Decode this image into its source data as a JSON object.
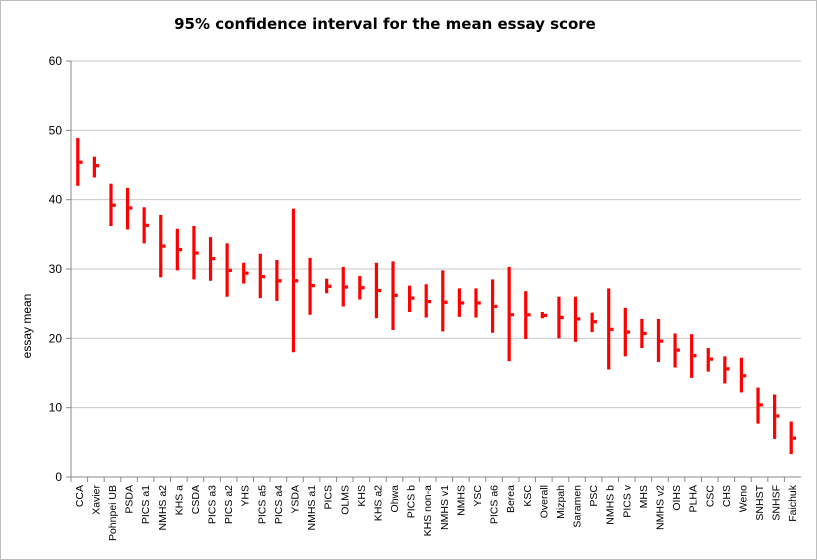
{
  "chart_data": {
    "type": "error-bar",
    "title": "95% confidence interval for the mean essay score",
    "xlabel": "",
    "ylabel": "essay mean",
    "ylim": [
      0,
      60
    ],
    "yticks": [
      0,
      10,
      20,
      30,
      40,
      50,
      60
    ],
    "grid": "horizontal",
    "legend": "none",
    "color": "#ff0000",
    "categories": [
      "CCA",
      "Xavier",
      "Pohnpei UB",
      "PSDA",
      "PICS a1",
      "NMHS a2",
      "KHS a",
      "CSDA",
      "PICS a3",
      "PICS a2",
      "YHS",
      "PICS a5",
      "PICS a4",
      "YSDA",
      "NMHS a1",
      "PICS",
      "OLMS",
      "KHS",
      "KHS a2",
      "Ohwa",
      "PICS b",
      "KHS non-a",
      "NMHS v1",
      "NMHS",
      "YSC",
      "PICS a6",
      "Berea",
      "KSC",
      "Overall",
      "Mizpah",
      "Saramen",
      "PSC",
      "NMHS b",
      "PICS v",
      "MHS",
      "NMHS v2",
      "OIHS",
      "PLHA",
      "CSC",
      "CHS",
      "Weno",
      "SNHST",
      "SNHSF",
      "Faichuk"
    ],
    "lower": [
      42,
      43.2,
      36.2,
      35.7,
      33.7,
      28.8,
      29.8,
      28.5,
      28.3,
      26,
      27.9,
      25.8,
      25.4,
      18,
      23.4,
      26.5,
      24.6,
      25.6,
      22.9,
      21.2,
      23.8,
      23,
      21,
      23.1,
      23,
      20.8,
      16.7,
      19.9,
      22.9,
      20,
      19.5,
      20.9,
      15.5,
      17.4,
      18.6,
      16.6,
      15.8,
      14.3,
      15.2,
      13.5,
      12.2,
      7.7,
      5.5,
      3.3
    ],
    "upper": [
      48.9,
      46.2,
      42.3,
      41.7,
      38.9,
      37.8,
      35.8,
      36.2,
      34.6,
      33.7,
      30.9,
      32.2,
      31.3,
      38.7,
      31.6,
      28.6,
      30.3,
      29,
      30.9,
      31.1,
      27.6,
      27.8,
      29.8,
      27.2,
      27.2,
      28.5,
      30.3,
      26.8,
      23.8,
      26,
      26,
      23.7,
      27.2,
      24.4,
      22.8,
      22.8,
      20.7,
      20.6,
      18.6,
      17.4,
      17.2,
      12.9,
      11.9,
      8
    ],
    "mean": [
      45.4,
      44.9,
      39.2,
      38.8,
      36.3,
      33.3,
      32.8,
      32.3,
      31.5,
      29.8,
      29.4,
      28.9,
      28.3,
      28.3,
      27.6,
      27.5,
      27.4,
      27.3,
      26.9,
      26.2,
      25.8,
      25.3,
      25.2,
      25.1,
      25.1,
      24.6,
      23.4,
      23.4,
      23.3,
      23,
      22.8,
      22.4,
      21.3,
      20.9,
      20.7,
      19.6,
      18.3,
      17.5,
      17,
      15.6,
      14.6,
      10.4,
      8.8,
      5.6
    ]
  }
}
